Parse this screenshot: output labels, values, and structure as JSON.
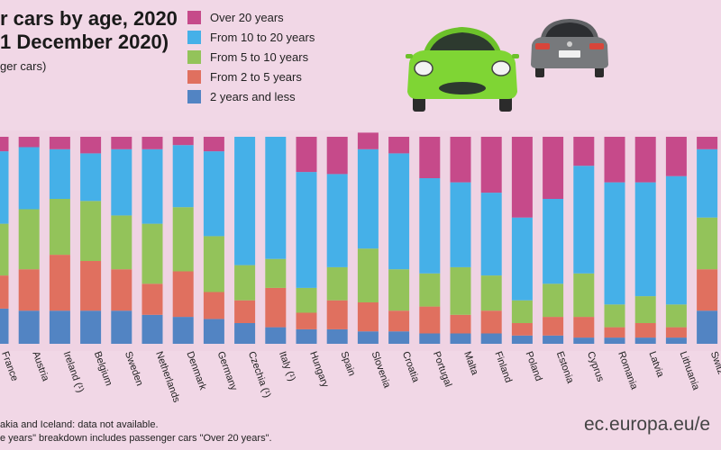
{
  "title": {
    "line1": "r cars by age, 2020",
    "line2": "1 December 2020)",
    "subtitle": "ger cars)"
  },
  "footnotes": {
    "line1": "akia and Iceland: data not available.",
    "line2": "e years\" breakdown includes passenger cars \"Over 20 years\"."
  },
  "source": "ec.europa.eu/e",
  "colors": {
    "over_20": "#c64a8a",
    "from_10_to_20": "#45b0e8",
    "from_5_to_10": "#93c35a",
    "from_2_to_5": "#e0705f",
    "two_and_less": "#5284c3",
    "background": "#f1d7e6"
  },
  "chart_data": {
    "type": "bar",
    "stacked": true,
    "percent": true,
    "categories": [
      "France",
      "Austria",
      "Ireland (¹)",
      "Belgium",
      "Sweden",
      "Netherlands",
      "Denmark",
      "Germany",
      "Czechia (¹)",
      "Italy (¹)",
      "Hungary",
      "Spain",
      "Slovenia",
      "Croatia",
      "Portugal",
      "Malta",
      "Finland",
      "Poland",
      "Estonia",
      "Cyprus",
      "Romania",
      "Latvia",
      "Lithuania",
      "Switz"
    ],
    "series": [
      {
        "name": "2 years and less",
        "color": "#5284c3",
        "values": [
          17,
          16,
          16,
          16,
          16,
          14,
          13,
          12,
          10,
          8,
          7,
          7,
          6,
          6,
          5,
          5,
          5,
          4,
          4,
          3,
          3,
          3,
          3,
          16
        ]
      },
      {
        "name": "From 2 to 5 years",
        "color": "#e0705f",
        "values": [
          16,
          20,
          27,
          24,
          20,
          15,
          22,
          13,
          11,
          19,
          8,
          14,
          14,
          10,
          13,
          9,
          11,
          6,
          9,
          10,
          5,
          7,
          5,
          20
        ]
      },
      {
        "name": "From 5 to 10 years",
        "color": "#93c35a",
        "values": [
          25,
          29,
          27,
          29,
          26,
          29,
          31,
          27,
          17,
          14,
          12,
          16,
          26,
          20,
          16,
          23,
          17,
          11,
          16,
          21,
          11,
          13,
          11,
          25
        ]
      },
      {
        "name": "From 10 to 20 years",
        "color": "#45b0e8",
        "values": [
          35,
          30,
          24,
          23,
          32,
          36,
          30,
          41,
          62,
          59,
          56,
          45,
          48,
          56,
          46,
          41,
          40,
          40,
          41,
          52,
          59,
          55,
          62,
          33
        ]
      },
      {
        "name": "Over 20 years",
        "color": "#c64a8a",
        "values": [
          7,
          5,
          6,
          8,
          6,
          6,
          4,
          7,
          0,
          0,
          17,
          18,
          8,
          8,
          20,
          22,
          27,
          39,
          30,
          14,
          22,
          22,
          19,
          6
        ]
      }
    ],
    "ylim": [
      0,
      100
    ],
    "legend_position": "top"
  }
}
